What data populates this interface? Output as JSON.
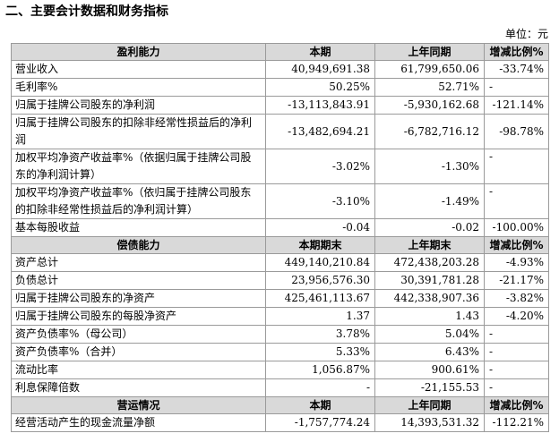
{
  "heading": "二、主要会计数据和财务指标",
  "unit": "单位：元",
  "sections": [
    {
      "header": [
        "盈利能力",
        "本期",
        "上年同期",
        "增减比例%"
      ],
      "rows": [
        [
          "营业收入",
          "40,949,691.38",
          "61,799,650.06",
          "-33.74%"
        ],
        [
          "毛利率%",
          "50.25%",
          "52.71%",
          "-"
        ],
        [
          "归属于挂牌公司股东的净利润",
          "-13,113,843.91",
          "-5,930,162.68",
          "-121.14%"
        ],
        [
          "归属于挂牌公司股东的扣除非经常性损益后的净利润",
          "-13,482,694.21",
          "-6,782,716.12",
          "-98.78%"
        ],
        [
          "加权平均净资产收益率%（依据归属于挂牌公司股东的净利润计算）",
          "-3.02%",
          "-1.30%",
          "-"
        ],
        [
          "加权平均净资产收益率%（依归属于挂牌公司股东的扣除非经常性损益后的净利润计算）",
          "-3.10%",
          "-1.49%",
          "-"
        ],
        [
          "基本每股收益",
          "-0.04",
          "-0.02",
          "-100.00%"
        ]
      ]
    },
    {
      "header": [
        "偿债能力",
        "本期期末",
        "上年期末",
        "增减比例%"
      ],
      "rows": [
        [
          "资产总计",
          "449,140,210.84",
          "472,438,203.28",
          "-4.93%"
        ],
        [
          "负债总计",
          "23,956,576.30",
          "30,391,781.28",
          "-21.17%"
        ],
        [
          "归属于挂牌公司股东的净资产",
          "425,461,113.67",
          "442,338,907.36",
          "-3.82%"
        ],
        [
          "归属于挂牌公司股东的每股净资产",
          "1.37",
          "1.43",
          "-4.20%"
        ],
        [
          "资产负债率%（母公司）",
          "3.78%",
          "5.04%",
          "-"
        ],
        [
          "资产负债率%（合并）",
          "5.33%",
          "6.43%",
          "-"
        ],
        [
          "流动比率",
          "1,056.87%",
          "900.61%",
          "-"
        ],
        [
          "利息保障倍数",
          "-",
          "-21,155.53",
          "-"
        ]
      ]
    },
    {
      "header": [
        "营运情况",
        "本期",
        "上年同期",
        "增减比例%"
      ],
      "rows": [
        [
          "经营活动产生的现金流量净额",
          "-1,757,774.24",
          "14,393,531.32",
          "-112.21%"
        ]
      ]
    }
  ]
}
